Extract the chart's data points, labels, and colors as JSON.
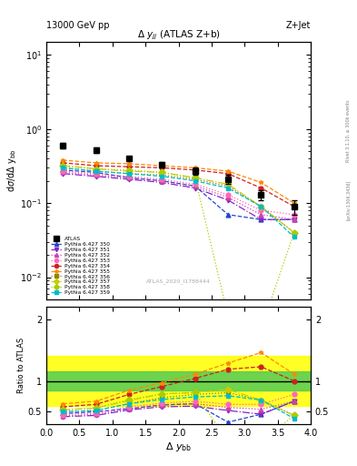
{
  "header_left": "13000 GeV pp",
  "header_right": "Z+Jet",
  "title_main": "Δ y(jj) (ATLAS Z+b)",
  "ylabel_main": "dσ/dΔ y_{bb}",
  "ylabel_ratio": "Ratio to ATLAS",
  "xlabel": "Δ y_{bb}",
  "watermark": "ATLAS_2020_I1788444",
  "right_label": "Rivet 3.1.10, ≥ 300k events",
  "arxiv_label": "[arXiv:1306.3436]",
  "x_values": [
    0.25,
    0.75,
    1.25,
    1.75,
    2.25,
    2.75,
    3.25,
    3.75
  ],
  "atlas_data": [
    0.6,
    0.52,
    0.4,
    0.33,
    0.27,
    0.21,
    0.13,
    0.09
  ],
  "atlas_err_stat": [
    0.05,
    0.04,
    0.03,
    0.03,
    0.03,
    0.03,
    0.02,
    0.02
  ],
  "series": [
    {
      "label": "Pythia 6.427 350",
      "color": "#2244cc",
      "marker": "^",
      "linestyle": "--",
      "values": [
        0.28,
        0.26,
        0.22,
        0.2,
        0.17,
        0.07,
        0.06,
        0.06
      ]
    },
    {
      "label": "Pythia 6.427 351",
      "color": "#8822cc",
      "marker": "v",
      "linestyle": "-.",
      "values": [
        0.25,
        0.23,
        0.21,
        0.19,
        0.16,
        0.11,
        0.06,
        0.06
      ]
    },
    {
      "label": "Pythia 6.427 352",
      "color": "#cc44aa",
      "marker": "^",
      "linestyle": ":",
      "values": [
        0.26,
        0.24,
        0.22,
        0.2,
        0.17,
        0.12,
        0.07,
        0.06
      ]
    },
    {
      "label": "Pythia 6.427 353",
      "color": "#ff66bb",
      "marker": "o",
      "linestyle": ":",
      "values": [
        0.27,
        0.25,
        0.23,
        0.21,
        0.18,
        0.13,
        0.08,
        0.07
      ]
    },
    {
      "label": "Pythia 6.427 354",
      "color": "#cc2222",
      "marker": "o",
      "linestyle": "--",
      "values": [
        0.35,
        0.32,
        0.31,
        0.3,
        0.28,
        0.25,
        0.16,
        0.09
      ]
    },
    {
      "label": "Pythia 6.427 355",
      "color": "#ff8800",
      "marker": "*",
      "linestyle": "--",
      "values": [
        0.38,
        0.35,
        0.34,
        0.32,
        0.3,
        0.27,
        0.19,
        0.1
      ]
    },
    {
      "label": "Pythia 6.427 356",
      "color": "#888800",
      "marker": "s",
      "linestyle": ":",
      "values": [
        0.3,
        0.27,
        0.25,
        0.24,
        0.21,
        0.17,
        0.09,
        0.04
      ]
    },
    {
      "label": "Pythia 6.427 357",
      "color": "#cccc00",
      "marker": "D",
      "linestyle": "-.",
      "values": [
        0.32,
        0.29,
        0.27,
        0.26,
        0.22,
        0.18,
        0.09,
        0.04
      ]
    },
    {
      "label": "Pythia 6.427 358",
      "color": "#aacc00",
      "marker": "D",
      "linestyle": ":",
      "values": [
        0.32,
        0.29,
        0.28,
        0.26,
        0.22,
        0.003,
        0.002,
        0.04
      ]
    },
    {
      "label": "Pythia 6.427 359",
      "color": "#00bbcc",
      "marker": "s",
      "linestyle": "--",
      "values": [
        0.3,
        0.27,
        0.25,
        0.23,
        0.2,
        0.16,
        0.09,
        0.035
      ]
    }
  ],
  "ratio_green_band": [
    0.85,
    1.15
  ],
  "ratio_yellow_band": [
    0.6,
    1.4
  ],
  "ratio_values": [
    [
      0.47,
      0.5,
      0.55,
      0.61,
      0.63,
      0.33,
      0.46,
      0.67
    ],
    [
      0.42,
      0.44,
      0.53,
      0.58,
      0.59,
      0.52,
      0.46,
      0.67
    ],
    [
      0.43,
      0.46,
      0.55,
      0.61,
      0.63,
      0.57,
      0.54,
      0.67
    ],
    [
      0.45,
      0.48,
      0.58,
      0.64,
      0.67,
      0.62,
      0.62,
      0.78
    ],
    [
      0.58,
      0.62,
      0.78,
      0.91,
      1.04,
      1.19,
      1.23,
      1.0
    ],
    [
      0.63,
      0.67,
      0.85,
      0.97,
      1.11,
      1.29,
      1.46,
      1.11
    ],
    [
      0.5,
      0.52,
      0.63,
      0.73,
      0.78,
      0.81,
      0.69,
      0.44
    ],
    [
      0.53,
      0.56,
      0.68,
      0.79,
      0.81,
      0.86,
      0.69,
      0.44
    ],
    [
      0.53,
      0.56,
      0.7,
      0.79,
      0.81,
      0.014,
      0.015,
      0.44
    ],
    [
      0.5,
      0.52,
      0.63,
      0.7,
      0.74,
      0.76,
      0.69,
      0.39
    ]
  ],
  "xlim": [
    0,
    4
  ],
  "ylim_main": [
    0.005,
    15
  ],
  "ylim_ratio": [
    0.3,
    2.2
  ],
  "yticks_ratio": [
    0.5,
    1.0,
    2.0
  ],
  "ytick_labels_ratio": [
    "0.5",
    "1",
    "2"
  ]
}
